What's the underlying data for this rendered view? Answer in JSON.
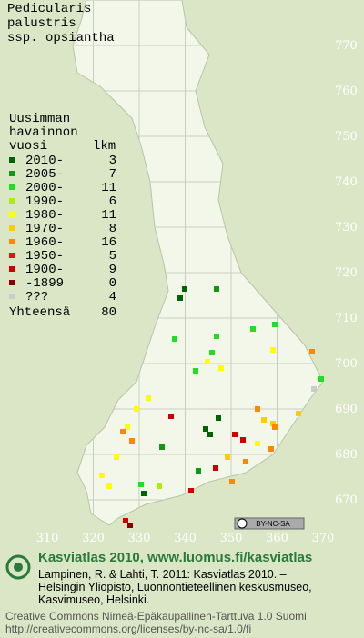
{
  "title": [
    "Pedicularis",
    "palustris",
    "ssp. opsiantha"
  ],
  "legend": {
    "heading": [
      "Uusimman",
      "havainnon",
      "vuosi"
    ],
    "count_heading": "lkm",
    "rows": [
      {
        "label": "2010-",
        "count": 3,
        "color": "#006400"
      },
      {
        "label": "2005-",
        "count": 7,
        "color": "#119911"
      },
      {
        "label": "2000-",
        "count": 11,
        "color": "#22dd22"
      },
      {
        "label": "1990-",
        "count": 6,
        "color": "#aaee00"
      },
      {
        "label": "1980-",
        "count": 11,
        "color": "#ffff00"
      },
      {
        "label": "1970-",
        "count": 8,
        "color": "#ffcc00"
      },
      {
        "label": "1960-",
        "count": 16,
        "color": "#ff8800"
      },
      {
        "label": "1950-",
        "count": 5,
        "color": "#ee1111"
      },
      {
        "label": "1900-",
        "count": 9,
        "color": "#cc0000"
      },
      {
        "label": "-1899",
        "count": 0,
        "color": "#8b0000"
      },
      {
        "label": "???",
        "count": 4,
        "color": "#cccccc"
      }
    ],
    "total": {
      "label": "Yhteensä",
      "count": 80
    }
  },
  "grid_y_labels": [
    770,
    760,
    750,
    740,
    730,
    720,
    710,
    700,
    690,
    680,
    670
  ],
  "grid_x_labels": [
    310,
    320,
    330,
    340,
    350,
    360,
    370
  ],
  "license_badge": "BY-NC-SA",
  "footer": {
    "brand": "Kasviatlas 2010, www.luomus.fi/kasviatlas",
    "citation": [
      "Lampinen, R. & Lahti, T. 2011: Kasviatlas 2010. –",
      "Helsingin Yliopisto, Luonnontieteellinen keskusmuseo,",
      "Kasvimuseo, Helsinki."
    ],
    "license": [
      "Creative Commons Nimeä-Epäkaupallinen-Tarttuva 1.0 Suomi",
      "http://creativecommons.org/licenses/by-nc-sa/1.0/fi"
    ]
  }
}
